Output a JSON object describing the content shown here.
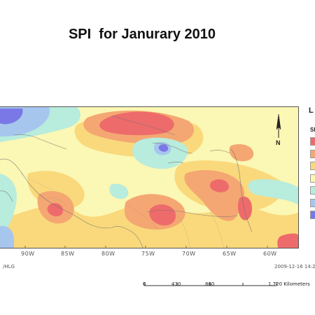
{
  "map": {
    "title": "SPI  for Janurary 2010",
    "legend_title": "L",
    "legend_subtitle": "SI",
    "legend_colors": [
      "#ee6b6b",
      "#f4a772",
      "#f9d97c",
      "#fbf7b4",
      "#b8ecdd",
      "#a7c6ee",
      "#7a78e6"
    ],
    "background_color": "#fbf7b4",
    "longitude_labels": [
      "90W",
      "85W",
      "80W",
      "75W",
      "70W",
      "65W",
      "60W"
    ],
    "north_arrow_letter": "N",
    "footer_left": "/HLG",
    "footer_right": "2009-12-16  14:2",
    "scale": {
      "ticks": [
        "0",
        "430",
        "860",
        "1,720 Kilometers"
      ]
    }
  }
}
